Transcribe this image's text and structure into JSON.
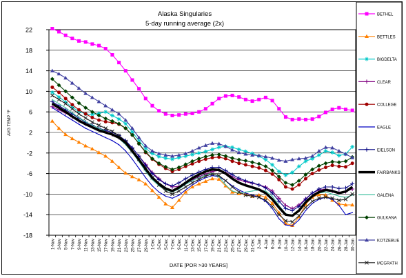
{
  "chart_data": {
    "type": "line",
    "title": "Alaska Singularies",
    "subtitle": "5-day running average (2x)",
    "xlabel": "DATE [POR >30 YEARS]",
    "ylabel": "AVG TEMP °F",
    "ylim": [
      -18,
      22
    ],
    "yticks": [
      22,
      18,
      14,
      10,
      6,
      2,
      -2,
      -6,
      -10,
      -14,
      -18
    ],
    "grid": true,
    "legend_position": "right",
    "x": [
      "1-Nov",
      "3-Nov",
      "5-Nov",
      "7-Nov",
      "9-Nov",
      "11-Nov",
      "13-Nov",
      "15-Nov",
      "17-Nov",
      "19-Nov",
      "21-Nov",
      "23-Nov",
      "25-Nov",
      "27-Nov",
      "29-Nov",
      "1-Dec",
      "3-Dec",
      "5-Dec",
      "7-Dec",
      "9-Dec",
      "11-Dec",
      "13-Dec",
      "15-Dec",
      "17-Dec",
      "19-Dec",
      "21-Dec",
      "23-Dec",
      "25-Dec",
      "27-Dec",
      "29-Dec",
      "31-Dec",
      "2-Jan",
      "4-Jan",
      "6-Jan",
      "8-Jan",
      "10-Jan",
      "12-Jan",
      "14-Jan",
      "16-Jan",
      "18-Jan",
      "20-Jan",
      "22-Jan",
      "24-Jan",
      "26-Jan",
      "28-Jan",
      "30-Jan"
    ],
    "series": [
      {
        "name": "BETHEL",
        "color": "#ff00ff",
        "marker": "square",
        "values": [
          22.2,
          21.6,
          20.9,
          20.3,
          19.8,
          19.6,
          19.2,
          18.9,
          18.3,
          17.1,
          15.6,
          14.0,
          12.2,
          10.5,
          8.6,
          7.2,
          6.2,
          5.6,
          5.3,
          5.4,
          5.6,
          5.7,
          6.0,
          6.6,
          7.6,
          8.6,
          9.1,
          9.2,
          8.9,
          8.4,
          8.1,
          8.4,
          8.8,
          8.2,
          6.6,
          5.0,
          4.5,
          4.6,
          4.5,
          4.6,
          5.1,
          5.9,
          6.5,
          6.8,
          6.5,
          6.3
        ]
      },
      {
        "name": "BETTLES",
        "color": "#ff8000",
        "marker": "triangle",
        "values": [
          4.2,
          2.8,
          1.6,
          0.8,
          0.1,
          -0.6,
          -1.2,
          -1.9,
          -2.6,
          -3.6,
          -4.8,
          -5.9,
          -6.6,
          -7.2,
          -8.0,
          -9.3,
          -10.6,
          -11.9,
          -12.6,
          -11.2,
          -9.6,
          -8.6,
          -8.0,
          -7.5,
          -7.0,
          -7.1,
          -8.4,
          -9.6,
          -9.9,
          -10.0,
          -10.4,
          -10.2,
          -10.6,
          -11.8,
          -13.6,
          -15.7,
          -16.1,
          -14.4,
          -12.0,
          -10.6,
          -10.1,
          -10.2,
          -11.2,
          -11.9,
          -12.1,
          -12.1
        ]
      },
      {
        "name": "BIGDELTA",
        "color": "#00c8c8",
        "marker": "star",
        "values": [
          9.8,
          8.9,
          7.9,
          6.9,
          6.1,
          5.6,
          5.5,
          5.7,
          6.0,
          5.3,
          4.6,
          3.7,
          2.1,
          0.4,
          -1.1,
          -2.1,
          -2.7,
          -3.0,
          -3.2,
          -2.9,
          -2.6,
          -2.3,
          -2.0,
          -1.7,
          -1.3,
          -0.9,
          -0.7,
          -0.9,
          -1.3,
          -1.7,
          -2.1,
          -2.6,
          -3.3,
          -4.3,
          -5.6,
          -6.3,
          -5.8,
          -4.6,
          -3.6,
          -3.1,
          -2.4,
          -1.6,
          -1.9,
          -2.5,
          -2.2,
          -0.8
        ]
      },
      {
        "name": "CLEAR",
        "color": "#800080",
        "marker": "plus",
        "values": [
          7.0,
          6.4,
          5.8,
          5.0,
          4.3,
          3.7,
          3.4,
          2.8,
          2.2,
          1.6,
          1.0,
          0.2,
          -1.0,
          -2.6,
          -4.2,
          -5.8,
          -7.0,
          -8.0,
          -8.6,
          -8.5,
          -7.9,
          -7.2,
          -6.6,
          -6.1,
          -5.6,
          -5.4,
          -5.8,
          -6.6,
          -7.2,
          -7.6,
          -7.9,
          -8.2,
          -8.6,
          -9.4,
          -10.8,
          -12.2,
          -12.8,
          -12.1,
          -10.9,
          -9.8,
          -9.2,
          -9.0,
          -9.4,
          -9.7,
          -9.5,
          -9.0
        ]
      },
      {
        "name": "COLLEGE",
        "color": "#a00000",
        "marker": "circle",
        "values": [
          10.8,
          9.8,
          8.6,
          7.4,
          6.4,
          5.6,
          4.9,
          4.4,
          4.1,
          3.9,
          3.6,
          2.8,
          1.5,
          -0.2,
          -1.9,
          -3.2,
          -4.2,
          -5.0,
          -5.6,
          -5.2,
          -4.6,
          -4.1,
          -3.6,
          -3.2,
          -2.9,
          -2.8,
          -3.1,
          -3.6,
          -4.0,
          -4.3,
          -4.6,
          -4.9,
          -5.4,
          -6.1,
          -7.2,
          -8.6,
          -9.0,
          -8.2,
          -7.0,
          -6.0,
          -5.3,
          -4.8,
          -4.4,
          -4.6,
          -4.7,
          -4.0
        ]
      },
      {
        "name": "EAGLE",
        "color": "#0000c0",
        "marker": "none",
        "values": [
          6.8,
          6.0,
          5.2,
          4.4,
          3.6,
          2.8,
          2.2,
          1.6,
          1.0,
          0.4,
          -0.4,
          -1.6,
          -3.2,
          -5.0,
          -6.8,
          -8.4,
          -9.6,
          -10.4,
          -10.8,
          -10.2,
          -9.2,
          -8.2,
          -7.4,
          -6.8,
          -6.4,
          -6.6,
          -7.4,
          -8.4,
          -9.2,
          -9.8,
          -10.2,
          -10.6,
          -11.4,
          -12.8,
          -14.8,
          -16.0,
          -16.2,
          -15.0,
          -13.2,
          -11.8,
          -11.0,
          -10.6,
          -11.0,
          -12.2,
          -14.0,
          -13.6
        ]
      },
      {
        "name": "EIELSON",
        "color": "#000080",
        "marker": "plus",
        "values": [
          8.0,
          7.2,
          6.4,
          5.6,
          4.8,
          4.0,
          3.4,
          2.8,
          2.4,
          2.0,
          1.4,
          0.4,
          -1.0,
          -2.6,
          -4.4,
          -6.0,
          -7.2,
          -8.0,
          -8.4,
          -7.8,
          -7.0,
          -6.3,
          -5.7,
          -5.2,
          -4.8,
          -4.8,
          -5.4,
          -6.2,
          -6.9,
          -7.4,
          -7.8,
          -8.2,
          -8.8,
          -9.8,
          -11.4,
          -12.8,
          -13.2,
          -12.4,
          -11.0,
          -9.8,
          -9.0,
          -8.6,
          -8.6,
          -8.9,
          -8.8,
          -8.0
        ]
      },
      {
        "name": "FAIRBANKS",
        "color": "#000000",
        "marker": "thick",
        "values": [
          7.6,
          6.8,
          6.0,
          5.1,
          4.3,
          3.6,
          3.0,
          2.4,
          2.0,
          1.6,
          1.0,
          0.0,
          -1.6,
          -3.3,
          -5.1,
          -6.8,
          -8.0,
          -8.9,
          -9.4,
          -8.7,
          -7.8,
          -6.9,
          -6.2,
          -5.6,
          -5.2,
          -5.3,
          -6.0,
          -7.0,
          -7.8,
          -8.3,
          -8.7,
          -9.1,
          -9.8,
          -11.0,
          -12.6,
          -14.0,
          -14.2,
          -13.2,
          -11.6,
          -10.4,
          -9.6,
          -9.2,
          -9.4,
          -9.8,
          -9.5,
          -8.6
        ]
      },
      {
        "name": "GALENA",
        "color": "#40c0a0",
        "marker": "none",
        "values": [
          8.4,
          7.6,
          6.8,
          5.8,
          4.9,
          4.1,
          3.4,
          2.8,
          2.2,
          1.6,
          0.8,
          -0.4,
          -1.9,
          -3.7,
          -5.6,
          -7.2,
          -8.4,
          -9.2,
          -9.6,
          -9.0,
          -8.1,
          -7.4,
          -6.8,
          -6.3,
          -6.0,
          -6.6,
          -8.2,
          -9.4,
          -9.8,
          -9.6,
          -9.4,
          -9.2,
          -9.4,
          -10.4,
          -12.2,
          -13.8,
          -14.2,
          -13.0,
          -11.4,
          -10.4,
          -9.8,
          -9.6,
          -10.0,
          -10.4,
          -10.6,
          -10.2
        ]
      },
      {
        "name": "GULKANA",
        "color": "#004000",
        "marker": "diamond",
        "values": [
          12.4,
          11.2,
          10.0,
          8.8,
          7.7,
          6.8,
          6.0,
          5.3,
          4.7,
          4.2,
          3.7,
          2.8,
          1.5,
          -0.2,
          -1.8,
          -3.1,
          -4.0,
          -4.7,
          -5.2,
          -4.8,
          -4.2,
          -3.6,
          -3.1,
          -2.7,
          -2.4,
          -2.3,
          -2.6,
          -3.0,
          -3.3,
          -3.5,
          -3.8,
          -4.1,
          -4.6,
          -5.4,
          -6.6,
          -7.8,
          -8.2,
          -7.4,
          -6.2,
          -5.2,
          -4.5,
          -4.0,
          -3.7,
          -3.8,
          -3.6,
          -2.8
        ]
      },
      {
        "name": "KOTZEBUE",
        "color": "#4040a0",
        "marker": "triangle",
        "values": [
          14.0,
          13.4,
          12.6,
          11.6,
          10.6,
          9.6,
          8.8,
          8.0,
          7.2,
          6.4,
          5.6,
          4.4,
          2.8,
          1.0,
          -0.6,
          -1.6,
          -2.1,
          -2.4,
          -2.6,
          -2.4,
          -2.1,
          -1.6,
          -1.0,
          -0.5,
          -0.1,
          -0.2,
          -0.7,
          -1.4,
          -1.9,
          -2.2,
          -2.4,
          -2.5,
          -2.7,
          -3.0,
          -3.4,
          -3.6,
          -3.3,
          -3.1,
          -3.0,
          -2.6,
          -1.6,
          -0.9,
          -1.0,
          -1.6,
          -2.2,
          -2.9
        ]
      },
      {
        "name": "MCGRATH",
        "color": "#202020",
        "marker": "cross",
        "values": [
          9.2,
          8.4,
          7.6,
          6.6,
          5.6,
          4.8,
          4.0,
          3.4,
          2.8,
          2.2,
          1.4,
          0.2,
          -1.4,
          -3.2,
          -5.0,
          -6.8,
          -8.2,
          -9.4,
          -10.0,
          -9.4,
          -8.6,
          -7.8,
          -7.1,
          -6.5,
          -6.1,
          -6.4,
          -7.4,
          -8.6,
          -9.6,
          -10.2,
          -10.4,
          -10.6,
          -11.2,
          -12.4,
          -14.0,
          -15.2,
          -15.4,
          -14.2,
          -12.6,
          -11.4,
          -10.8,
          -10.6,
          -10.8,
          -11.2,
          -11.0,
          -10.0
        ]
      }
    ]
  }
}
